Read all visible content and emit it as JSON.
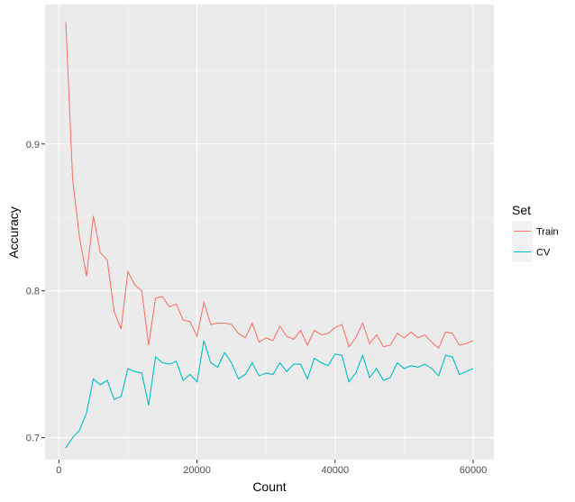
{
  "chart_data": {
    "type": "line",
    "xlabel": "Count",
    "ylabel": "Accuracy",
    "xlim": [
      -2000,
      63000
    ],
    "ylim": [
      0.685,
      0.995
    ],
    "x_ticks": [
      0,
      20000,
      40000,
      60000
    ],
    "x_tick_labels": [
      "0",
      "20000",
      "40000",
      "60000"
    ],
    "y_ticks": [
      0.7,
      0.8,
      0.9
    ],
    "y_tick_labels": [
      "0.7",
      "0.8",
      "0.9"
    ],
    "grid": true,
    "legend": {
      "title": "Set",
      "position": "right"
    },
    "x": [
      1000,
      2000,
      3000,
      4000,
      5000,
      6000,
      7000,
      8000,
      9000,
      10000,
      11000,
      12000,
      13000,
      14000,
      15000,
      16000,
      17000,
      18000,
      19000,
      20000,
      21000,
      22000,
      23000,
      24000,
      25000,
      26000,
      27000,
      28000,
      29000,
      30000,
      31000,
      32000,
      33000,
      34000,
      35000,
      36000,
      37000,
      38000,
      39000,
      40000,
      41000,
      42000,
      43000,
      44000,
      45000,
      46000,
      47000,
      48000,
      49000,
      50000,
      51000,
      52000,
      53000,
      54000,
      55000,
      56000,
      57000,
      58000,
      59000,
      60000
    ],
    "series": [
      {
        "name": "Train",
        "color": "#F8766D",
        "values": [
          0.983,
          0.876,
          0.836,
          0.81,
          0.851,
          0.826,
          0.821,
          0.786,
          0.774,
          0.813,
          0.804,
          0.8,
          0.763,
          0.795,
          0.796,
          0.789,
          0.791,
          0.78,
          0.779,
          0.769,
          0.792,
          0.777,
          0.778,
          0.778,
          0.777,
          0.771,
          0.768,
          0.778,
          0.765,
          0.768,
          0.766,
          0.776,
          0.769,
          0.767,
          0.773,
          0.763,
          0.773,
          0.77,
          0.771,
          0.775,
          0.777,
          0.762,
          0.768,
          0.778,
          0.764,
          0.77,
          0.762,
          0.763,
          0.771,
          0.768,
          0.772,
          0.768,
          0.77,
          0.765,
          0.761,
          0.772,
          0.771,
          0.763,
          0.764,
          0.766
        ]
      },
      {
        "name": "CV",
        "color": "#00BFC4",
        "values": [
          0.693,
          0.7,
          0.705,
          0.717,
          0.74,
          0.736,
          0.739,
          0.726,
          0.728,
          0.747,
          0.745,
          0.744,
          0.722,
          0.755,
          0.751,
          0.75,
          0.752,
          0.739,
          0.743,
          0.738,
          0.766,
          0.751,
          0.748,
          0.758,
          0.751,
          0.74,
          0.743,
          0.751,
          0.742,
          0.744,
          0.743,
          0.751,
          0.745,
          0.75,
          0.75,
          0.74,
          0.754,
          0.751,
          0.749,
          0.757,
          0.756,
          0.738,
          0.744,
          0.756,
          0.741,
          0.747,
          0.739,
          0.741,
          0.751,
          0.747,
          0.749,
          0.748,
          0.75,
          0.747,
          0.742,
          0.756,
          0.755,
          0.743,
          0.745,
          0.747
        ]
      }
    ]
  }
}
